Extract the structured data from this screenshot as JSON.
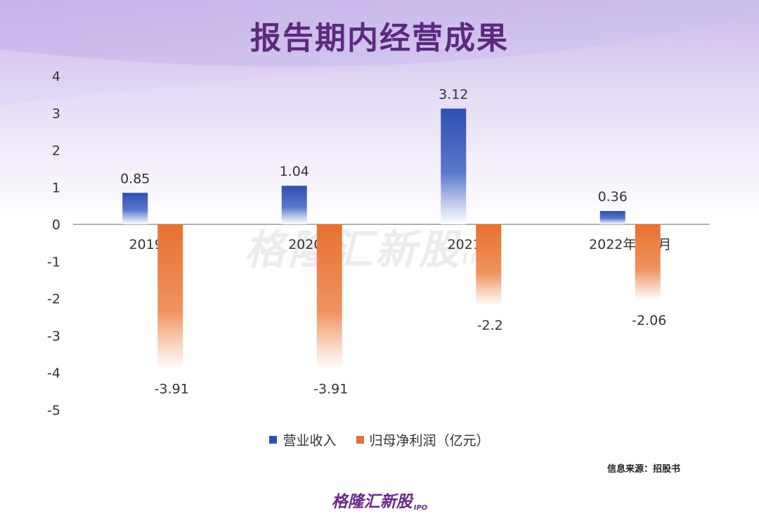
{
  "title": "报告期内经营成果",
  "watermark": {
    "name": "格隆汇新股",
    "suffix": "IPO"
  },
  "source": "信息来源：招股书",
  "footer_logo": {
    "name": "格隆汇新股",
    "suffix": "IPO"
  },
  "legend": [
    {
      "label": "营业收入",
      "color": "#2f4fb0"
    },
    {
      "label": "归母净利润（亿元）",
      "color": "#e8712f"
    }
  ],
  "colors": {
    "revenue": "#2f4fb0",
    "profit": "#e8712f",
    "axis": "#999999",
    "title": "#5a2a7e"
  },
  "chart_data": {
    "type": "bar",
    "categories": [
      "2019年",
      "2020年",
      "2021年",
      "2022年1-6月"
    ],
    "series": [
      {
        "name": "营业收入",
        "values": [
          0.85,
          1.04,
          3.12,
          0.36
        ]
      },
      {
        "name": "归母净利润（亿元）",
        "values": [
          -3.91,
          -3.91,
          -2.2,
          -2.06
        ]
      }
    ],
    "data_labels": [
      [
        "0.85",
        "1.04",
        "3.12",
        "0.36"
      ],
      [
        "-3.91",
        "-3.91",
        "-2.2",
        "-2.06"
      ]
    ],
    "ylim": [
      -5,
      4
    ],
    "yticks": [
      4,
      3,
      2,
      1,
      0,
      -1,
      -2,
      -3,
      -4,
      -5
    ],
    "ytick_labels": [
      "4",
      "3",
      "2",
      "1",
      "0",
      "-1",
      "-2",
      "-3",
      "-4",
      "-5"
    ],
    "grid": false,
    "legend_position": "bottom"
  }
}
